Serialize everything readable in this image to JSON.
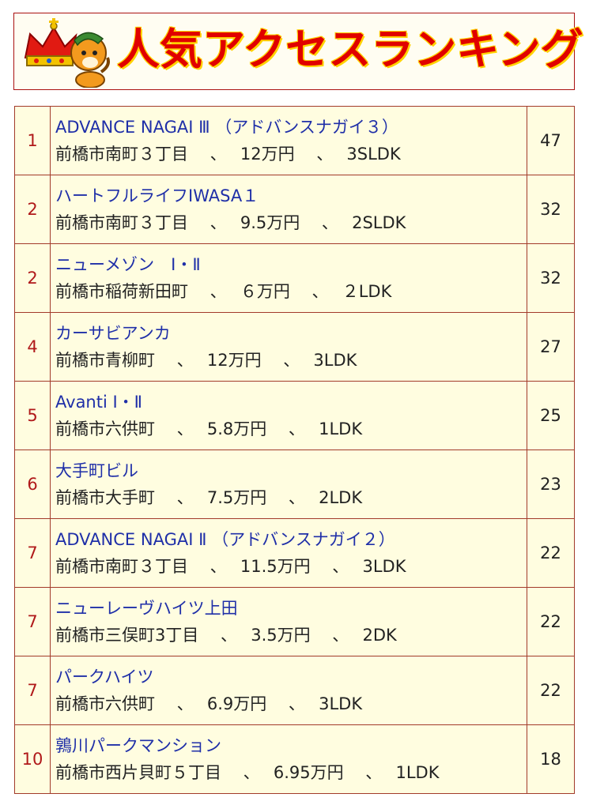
{
  "header": {
    "title": "人気アクセスランキング"
  },
  "colors": {
    "rank_text": "#b0191a",
    "name_text": "#1f2fa8",
    "border": "#a23a2a",
    "row_background": "#fffde0",
    "title_red": "#e00000",
    "title_outline": "#ffd200"
  },
  "ranking": [
    {
      "rank": "1",
      "name": "ADVANCE NAGAI Ⅲ （アドバンスナガイ３）",
      "detail": "前橋市南町３丁目　 、　 12万円　 、　 3SLDK",
      "count": "47"
    },
    {
      "rank": "2",
      "name": "ハートフルライフIWASA１",
      "detail": "前橋市南町３丁目　 、　 9.5万円　 、　 2SLDK",
      "count": "32"
    },
    {
      "rank": "2",
      "name": "ニューメゾン　Ⅰ・Ⅱ",
      "detail": "前橋市稲荷新田町　 、　 ６万円　 、　 ２LDK",
      "count": "32"
    },
    {
      "rank": "4",
      "name": "カーサビアンカ",
      "detail": "前橋市青柳町　 、　 12万円　 、　 3LDK",
      "count": "27"
    },
    {
      "rank": "5",
      "name": "Avanti Ⅰ・Ⅱ",
      "detail": "前橋市六供町　 、　 5.8万円　 、　 1LDK",
      "count": "25"
    },
    {
      "rank": "6",
      "name": "大手町ビル",
      "detail": "前橋市大手町　 、　 7.5万円　 、　 2LDK",
      "count": "23"
    },
    {
      "rank": "7",
      "name": "ADVANCE NAGAI Ⅱ （アドバンスナガイ２）",
      "detail": "前橋市南町３丁目　 、　 11.5万円　 、　 3LDK",
      "count": "22"
    },
    {
      "rank": "7",
      "name": "ニューレーヴハイツ上田",
      "detail": "前橋市三俣町3丁目　 、　 3.5万円　 、　 2DK",
      "count": "22"
    },
    {
      "rank": "7",
      "name": "パークハイツ",
      "detail": "前橋市六供町　 、　 6.9万円　 、　 3LDK",
      "count": "22"
    },
    {
      "rank": "10",
      "name": "鶉川パークマンション",
      "detail": "前橋市西片貝町５丁目　 、　 6.95万円　 、　 1LDK",
      "count": "18"
    }
  ]
}
